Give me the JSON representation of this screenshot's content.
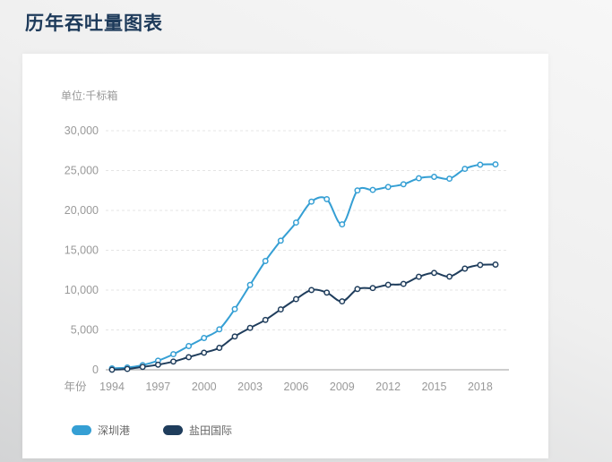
{
  "page": {
    "title": "历年吞吐量图表"
  },
  "chart": {
    "unit_label": "单位:千标箱",
    "x_axis_name": "年份",
    "colors": {
      "title_text": "#1d3a5a",
      "tick_text": "#999999",
      "grid_line": "#e4e4e4",
      "axis_line": "#9b9b9b",
      "legend_text": "#666666",
      "card_bg": "#ffffff"
    }
  },
  "chart_data": {
    "type": "line",
    "title": "历年吞吐量图表",
    "xlabel": "年份",
    "ylabel": "单位:千标箱",
    "ylim": [
      0,
      30000
    ],
    "y_ticks": [
      0,
      5000,
      10000,
      15000,
      20000,
      25000,
      30000
    ],
    "x": [
      1994,
      1995,
      1996,
      1997,
      1998,
      1999,
      2000,
      2001,
      2002,
      2003,
      2004,
      2005,
      2006,
      2007,
      2008,
      2009,
      2010,
      2011,
      2012,
      2013,
      2014,
      2015,
      2016,
      2017,
      2018,
      2019
    ],
    "x_tick_labels": [
      "1994",
      "1997",
      "2000",
      "2003",
      "2006",
      "2009",
      "2012",
      "2015",
      "2018"
    ],
    "grid": true,
    "smooth": true,
    "markers": "hollow-circle",
    "legend_position": "bottom-left",
    "series": [
      {
        "name": "深圳港",
        "color": "#359fd4",
        "values": [
          179,
          284,
          589,
          1147,
          1952,
          2978,
          3994,
          5076,
          7618,
          10650,
          13655,
          16197,
          18469,
          21099,
          21414,
          18250,
          22510,
          22571,
          22941,
          23279,
          24037,
          24210,
          23979,
          25209,
          25740,
          25772
        ]
      },
      {
        "name": "盐田国际",
        "color": "#1f3d5c",
        "values": [
          13,
          106,
          354,
          638,
          1038,
          1588,
          2148,
          2752,
          4182,
          5258,
          6260,
          7578,
          8865,
          10016,
          9683,
          8579,
          10134,
          10264,
          10667,
          10780,
          11670,
          12160,
          11700,
          12700,
          13160,
          13200
        ]
      }
    ]
  }
}
